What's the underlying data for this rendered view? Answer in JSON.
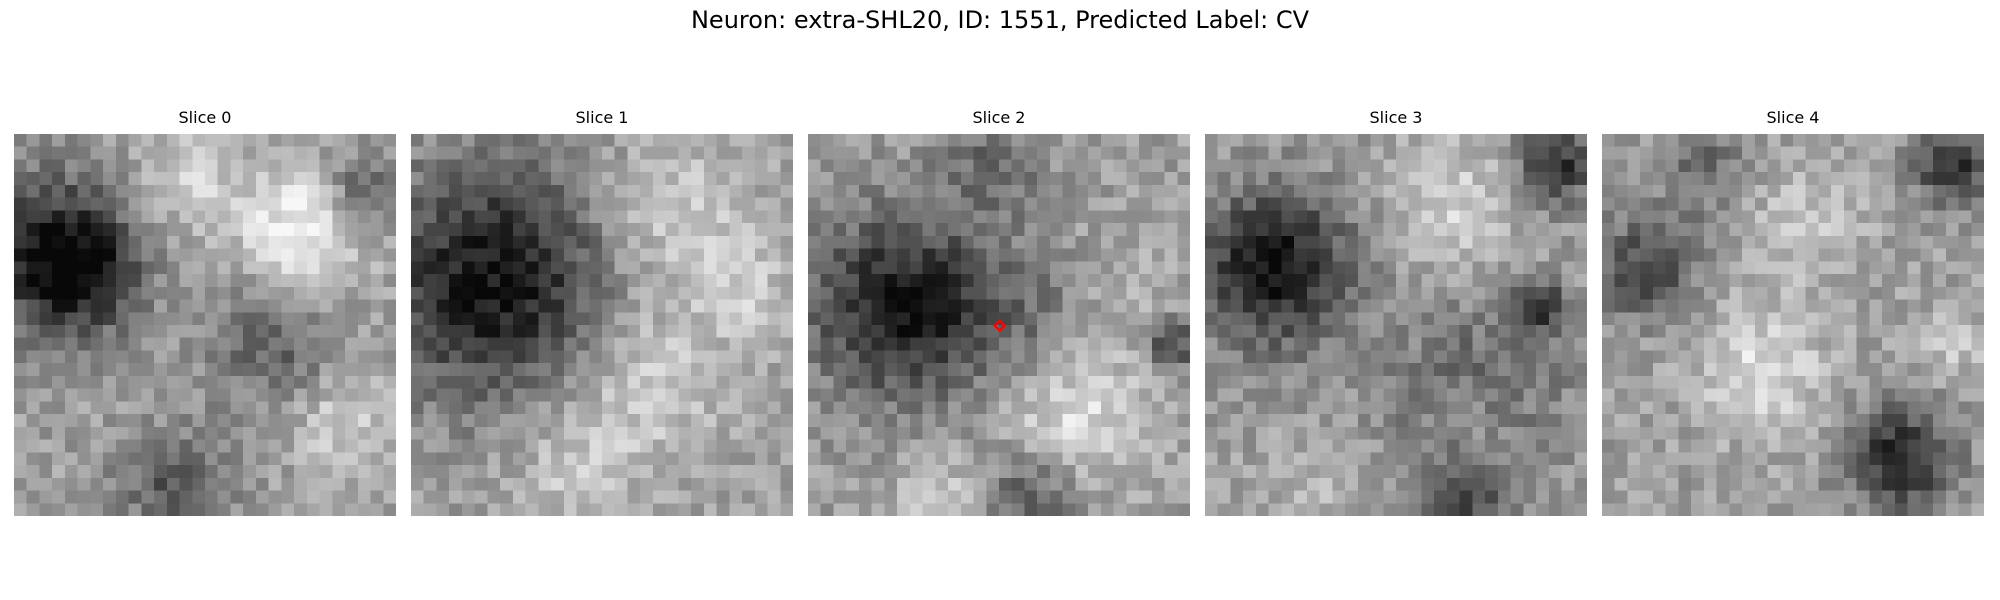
{
  "figure": {
    "title": "Neuron: extra-SHL20, ID: 1551, Predicted Label: CV"
  },
  "panels": [
    {
      "title": "Slice 0"
    },
    {
      "title": "Slice 1"
    },
    {
      "title": "Slice 2"
    },
    {
      "title": "Slice 3"
    },
    {
      "title": "Slice 4"
    }
  ],
  "colormap": "grayscale",
  "marker": {
    "shape": "diamond",
    "color": "#ff0000",
    "panel": "Slice 2"
  }
}
